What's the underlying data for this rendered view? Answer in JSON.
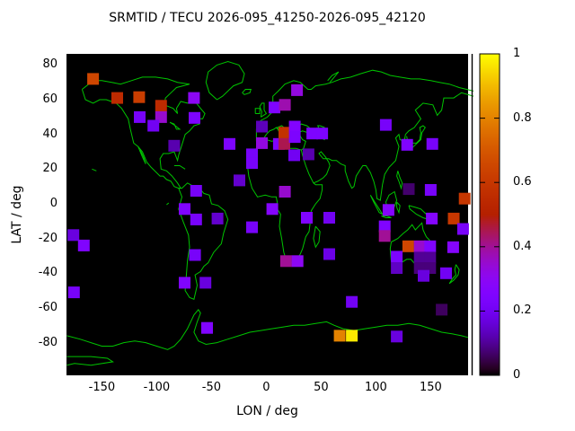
{
  "title": "SRMTID / TECU 2026-095_41250-2026-095_42120",
  "chart_data": {
    "type": "heatmap",
    "title": "SRMTID / TECU 2026-095_41250-2026-095_42120",
    "xlabel": "LON / deg",
    "ylabel": "LAT / deg",
    "xlim": [
      -182,
      184
    ],
    "ylim": [
      -98,
      86
    ],
    "xticks": [
      -150,
      -100,
      -50,
      0,
      50,
      100,
      150
    ],
    "yticks": [
      80,
      60,
      40,
      20,
      0,
      -20,
      -40,
      -60,
      -80
    ],
    "grid": false,
    "background_color": "#000000",
    "coastline_color": "#00c400",
    "palette": "gnuplot default pm3d (rgbformulae 7,5,15: R=sqrt(v), G=v^3, B=sin(360v))",
    "colorbar": {
      "min": 0,
      "max": 1,
      "ticks": [
        0,
        0.2,
        0.4,
        0.6,
        0.8,
        1
      ],
      "tick_labels": [
        "0",
        "0.2",
        "0.4",
        "0.6",
        "0.8",
        "1"
      ],
      "position": "right"
    },
    "points": [
      {
        "lon": -158,
        "lat": 72,
        "value": 0.65
      },
      {
        "lon": -136,
        "lat": 61,
        "value": 0.55
      },
      {
        "lon": -116,
        "lat": 61.5,
        "value": 0.62
      },
      {
        "lon": -96,
        "lat": 56.5,
        "value": 0.55
      },
      {
        "lon": -96,
        "lat": 50,
        "value": 0.35
      },
      {
        "lon": -66,
        "lat": 61,
        "value": 0.3
      },
      {
        "lon": -115.5,
        "lat": 50,
        "value": 0.22
      },
      {
        "lon": -103,
        "lat": 45,
        "value": 0.2
      },
      {
        "lon": -65.5,
        "lat": 49.5,
        "value": 0.24
      },
      {
        "lon": -84,
        "lat": 33.5,
        "value": 0.12
      },
      {
        "lon": -33.5,
        "lat": 34.5,
        "value": 0.24
      },
      {
        "lon": -13,
        "lat": 28.5,
        "value": 0.22
      },
      {
        "lon": -13,
        "lat": 23.5,
        "value": 0.22
      },
      {
        "lon": -4,
        "lat": 44.5,
        "value": 0.13
      },
      {
        "lon": -4,
        "lat": 35,
        "value": 0.33
      },
      {
        "lon": 7.5,
        "lat": 55.5,
        "value": 0.25
      },
      {
        "lon": 17,
        "lat": 57,
        "value": 0.38
      },
      {
        "lon": 28,
        "lat": 65.5,
        "value": 0.33
      },
      {
        "lon": 11.5,
        "lat": 34.5,
        "value": 0.25
      },
      {
        "lon": 16.5,
        "lat": 41,
        "value": 0.58
      },
      {
        "lon": 16.5,
        "lat": 34.5,
        "value": 0.45
      },
      {
        "lon": 26,
        "lat": 44.5,
        "value": 0.26
      },
      {
        "lon": 26,
        "lat": 38.5,
        "value": 0.24
      },
      {
        "lon": 25.5,
        "lat": 28,
        "value": 0.2
      },
      {
        "lon": 38.5,
        "lat": 28.5,
        "value": 0.12
      },
      {
        "lon": 42,
        "lat": 40.5,
        "value": 0.24
      },
      {
        "lon": 51,
        "lat": 40.5,
        "value": 0.24
      },
      {
        "lon": -24.5,
        "lat": 13.5,
        "value": 0.15
      },
      {
        "lon": 17,
        "lat": 7,
        "value": 0.35
      },
      {
        "lon": 5.5,
        "lat": -3,
        "value": 0.27
      },
      {
        "lon": 37,
        "lat": -8,
        "value": 0.25
      },
      {
        "lon": 57.5,
        "lat": -8,
        "value": 0.2
      },
      {
        "lon": -13,
        "lat": -13.5,
        "value": 0.22
      },
      {
        "lon": 57.5,
        "lat": -29,
        "value": 0.18
      },
      {
        "lon": 18,
        "lat": -33,
        "value": 0.4
      },
      {
        "lon": 28.5,
        "lat": -33,
        "value": 0.3
      },
      {
        "lon": -64,
        "lat": 7.5,
        "value": 0.22
      },
      {
        "lon": -74.5,
        "lat": -3,
        "value": 0.25
      },
      {
        "lon": -64,
        "lat": -9,
        "value": 0.22
      },
      {
        "lon": -44.5,
        "lat": -8.5,
        "value": 0.15
      },
      {
        "lon": -65,
        "lat": -29.5,
        "value": 0.22
      },
      {
        "lon": -74.5,
        "lat": -45.5,
        "value": 0.25
      },
      {
        "lon": -55.5,
        "lat": -45.5,
        "value": 0.17
      },
      {
        "lon": -176,
        "lat": -18,
        "value": 0.17
      },
      {
        "lon": -166.5,
        "lat": -24,
        "value": 0.25
      },
      {
        "lon": -175.5,
        "lat": -51,
        "value": 0.22
      },
      {
        "lon": 109,
        "lat": 45.5,
        "value": 0.22
      },
      {
        "lon": 128.5,
        "lat": 34,
        "value": 0.25
      },
      {
        "lon": 151.5,
        "lat": 34.5,
        "value": 0.22
      },
      {
        "lon": 130,
        "lat": 8.5,
        "value": 0.07
      },
      {
        "lon": 150,
        "lat": 8,
        "value": 0.22
      },
      {
        "lon": 181,
        "lat": 3,
        "value": 0.6
      },
      {
        "lon": 111.5,
        "lat": -3.5,
        "value": 0.27
      },
      {
        "lon": 108,
        "lat": -13,
        "value": 0.25
      },
      {
        "lon": 108,
        "lat": -18.5,
        "value": 0.4
      },
      {
        "lon": 129.5,
        "lat": -24.5,
        "value": 0.65
      },
      {
        "lon": 140,
        "lat": -24.5,
        "value": 0.35
      },
      {
        "lon": 149.5,
        "lat": -24.5,
        "value": 0.25
      },
      {
        "lon": 170.5,
        "lat": -25,
        "value": 0.27
      },
      {
        "lon": 171,
        "lat": -8.5,
        "value": 0.6
      },
      {
        "lon": 151,
        "lat": -8.5,
        "value": 0.27
      },
      {
        "lon": 179.5,
        "lat": -14.5,
        "value": 0.22
      },
      {
        "lon": 119,
        "lat": -30.5,
        "value": 0.24
      },
      {
        "lon": 140,
        "lat": -31,
        "value": 0.1
      },
      {
        "lon": 149.5,
        "lat": -31,
        "value": 0.1
      },
      {
        "lon": 119,
        "lat": -37,
        "value": 0.14
      },
      {
        "lon": 140,
        "lat": -37,
        "value": 0.08
      },
      {
        "lon": 149.5,
        "lat": -37,
        "value": 0.08
      },
      {
        "lon": 143.5,
        "lat": -41.5,
        "value": 0.17
      },
      {
        "lon": 164,
        "lat": -40,
        "value": 0.2
      },
      {
        "lon": 160,
        "lat": -61,
        "value": 0.06
      },
      {
        "lon": 78,
        "lat": -56.5,
        "value": 0.2
      },
      {
        "lon": -54,
        "lat": -71.5,
        "value": 0.25
      },
      {
        "lon": 67,
        "lat": -76,
        "value": 0.8
      },
      {
        "lon": 78,
        "lat": -76,
        "value": 0.97
      },
      {
        "lon": 119,
        "lat": -76.5,
        "value": 0.17
      }
    ]
  }
}
